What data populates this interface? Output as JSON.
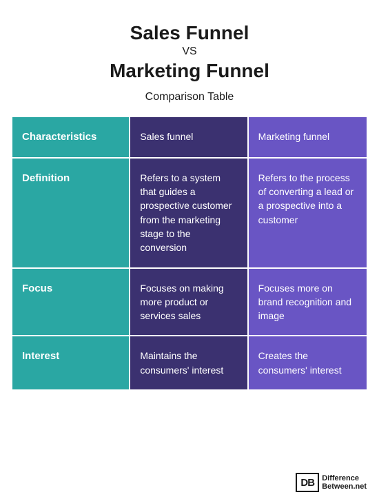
{
  "header": {
    "title_a": "Sales Funnel",
    "vs": "VS",
    "title_b": "Marketing Funnel",
    "subtitle": "Comparison Table"
  },
  "table": {
    "colors": {
      "col1_bg": "#2aa7a3",
      "col2_bg": "#3b3170",
      "col3_bg": "#6955c4",
      "text": "#ffffff",
      "gap": "#ffffff"
    },
    "header_row": {
      "c1": "Characteristics",
      "c2": "Sales funnel",
      "c3": "Marketing funnel"
    },
    "rows": [
      {
        "c1": "Definition",
        "c2": "Refers to a system that guides a prospective customer from the marketing stage to the conversion",
        "c3": "Refers to the process of converting a lead or a prospective into a customer"
      },
      {
        "c1": "Focus",
        "c2": "Focuses on making more product or services sales",
        "c3": "Focuses more on brand recognition and image"
      },
      {
        "c1": "Interest",
        "c2": "Maintains the consumers' interest",
        "c3": "Creates the consumers' interest"
      }
    ]
  },
  "logo": {
    "box": "DB",
    "line1": "Difference",
    "line2": "Between.net"
  }
}
